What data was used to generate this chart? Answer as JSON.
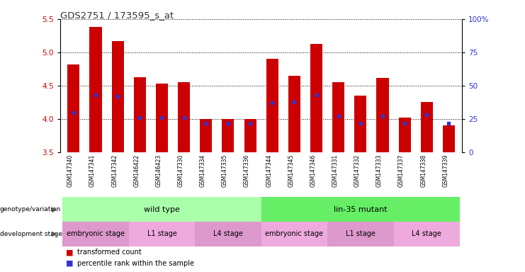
{
  "title": "GDS2751 / 173595_s_at",
  "samples": [
    "GSM147340",
    "GSM147341",
    "GSM147342",
    "GSM146422",
    "GSM146423",
    "GSM147330",
    "GSM147334",
    "GSM147335",
    "GSM147336",
    "GSM147344",
    "GSM147345",
    "GSM147346",
    "GSM147331",
    "GSM147332",
    "GSM147333",
    "GSM147337",
    "GSM147338",
    "GSM147339"
  ],
  "bar_values": [
    4.82,
    5.38,
    5.17,
    4.63,
    4.53,
    4.55,
    4.0,
    4.0,
    4.0,
    4.9,
    4.65,
    5.13,
    4.55,
    4.35,
    4.62,
    4.02,
    4.25,
    3.9
  ],
  "percentile_ranks": [
    30,
    43,
    42,
    26,
    26,
    26,
    22,
    22,
    22,
    37,
    38,
    43,
    27,
    22,
    27,
    22,
    28,
    22
  ],
  "ylim_left": [
    3.5,
    5.5
  ],
  "bar_color": "#cc0000",
  "marker_color": "#3333cc",
  "axis_color_left": "#cc0000",
  "axis_color_right": "#3333cc",
  "left_yticks": [
    3.5,
    4.0,
    4.5,
    5.0,
    5.5
  ],
  "right_yticks": [
    0,
    25,
    50,
    75,
    100
  ],
  "right_ytick_labels": [
    "0",
    "25",
    "50",
    "75",
    "100%"
  ],
  "genotype_groups": [
    {
      "label": "wild type",
      "start": 0,
      "end": 9,
      "color": "#aaffaa"
    },
    {
      "label": "lin-35 mutant",
      "start": 9,
      "end": 18,
      "color": "#66ee66"
    }
  ],
  "stage_groups": [
    {
      "label": "embryonic stage",
      "start": 0,
      "end": 3,
      "color": "#dd99cc"
    },
    {
      "label": "L1 stage",
      "start": 3,
      "end": 6,
      "color": "#eeaadd"
    },
    {
      "label": "L4 stage",
      "start": 6,
      "end": 9,
      "color": "#dd99cc"
    },
    {
      "label": "embryonic stage",
      "start": 9,
      "end": 12,
      "color": "#eeaadd"
    },
    {
      "label": "L1 stage",
      "start": 12,
      "end": 15,
      "color": "#dd99cc"
    },
    {
      "label": "L4 stage",
      "start": 15,
      "end": 18,
      "color": "#eeaadd"
    }
  ],
  "legend_items": [
    {
      "label": "transformed count",
      "color": "#cc0000"
    },
    {
      "label": "percentile rank within the sample",
      "color": "#3333cc"
    }
  ],
  "bar_width": 0.55
}
